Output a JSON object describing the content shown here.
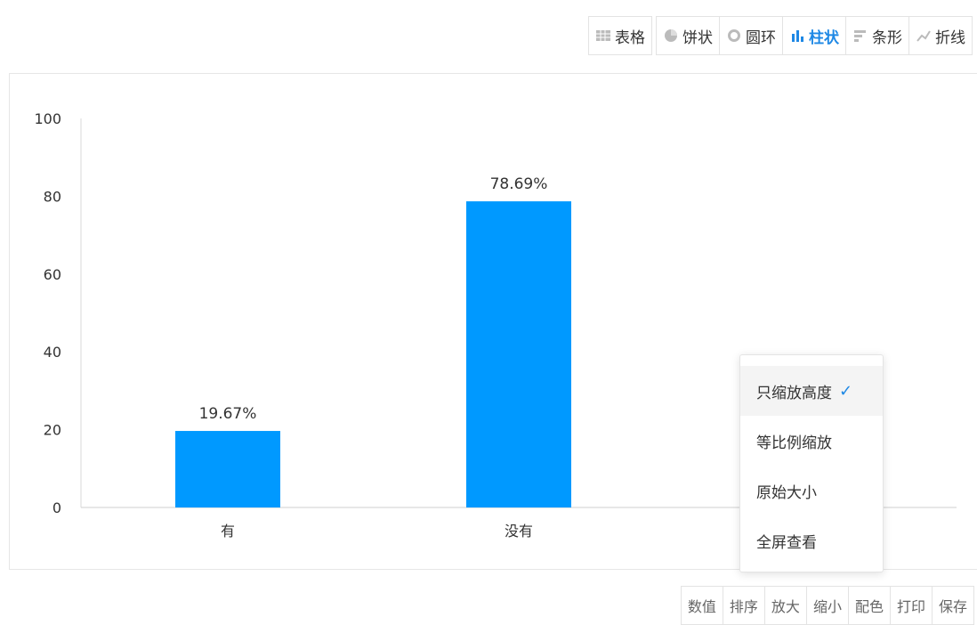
{
  "toolbar": {
    "items": [
      {
        "label": "表格",
        "icon": "table-icon"
      },
      {
        "label": "饼状",
        "icon": "pie-icon"
      },
      {
        "label": "圆环",
        "icon": "donut-icon"
      },
      {
        "label": "柱状",
        "icon": "column-chart-icon",
        "active": true
      },
      {
        "label": "条形",
        "icon": "bar-chart-icon"
      },
      {
        "label": "折线",
        "icon": "line-chart-icon"
      }
    ]
  },
  "chart_data": {
    "type": "bar",
    "categories": [
      "有",
      "没有"
    ],
    "values": [
      19.67,
      78.69
    ],
    "value_labels": [
      "19.67%",
      "78.69%"
    ],
    "ylim": [
      0,
      100
    ],
    "yticks": [
      "0",
      "20",
      "40",
      "60",
      "80",
      "100"
    ],
    "bar_color": "#0099ff",
    "grid": false,
    "legend": "none"
  },
  "zoom_menu": {
    "items": [
      "只缩放高度",
      "等比例缩放",
      "原始大小",
      "全屏查看"
    ],
    "selected_check": "✓"
  },
  "bottom_toolbar": {
    "items": [
      "数值",
      "排序",
      "放大",
      "缩小",
      "配色",
      "打印",
      "保存"
    ]
  },
  "colors": {
    "accent": "#1e88e5",
    "bar": "#0099ff"
  }
}
